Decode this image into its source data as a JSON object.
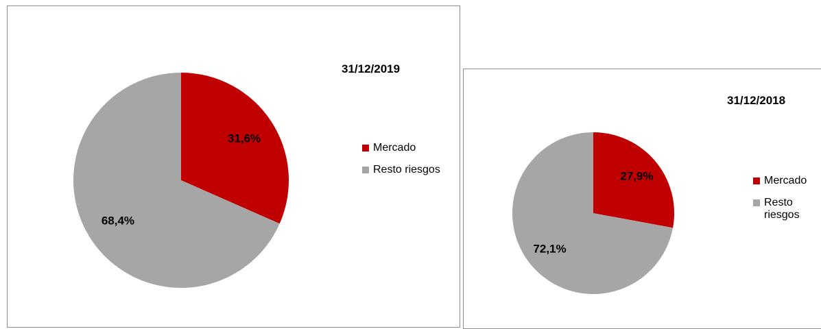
{
  "chart_data": [
    {
      "type": "pie",
      "title": "31/12/2019",
      "categories": [
        "Mercado",
        "Resto riesgos"
      ],
      "values": [
        31.6,
        68.4
      ],
      "value_labels": [
        "31,6%",
        "68,4%"
      ],
      "colors": [
        "#c00000",
        "#a6a6a6"
      ]
    },
    {
      "type": "pie",
      "title": "31/12/2018",
      "categories": [
        "Mercado",
        "Resto riesgos"
      ],
      "values": [
        27.9,
        72.1
      ],
      "value_labels": [
        "27,9%",
        "72,1%"
      ],
      "colors": [
        "#c00000",
        "#a6a6a6"
      ]
    }
  ]
}
